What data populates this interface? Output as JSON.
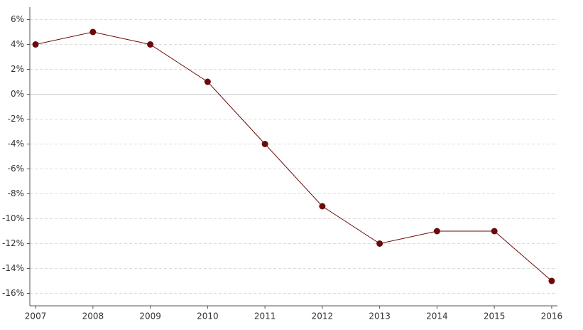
{
  "chart_data": {
    "type": "line",
    "x": [
      2007,
      2008,
      2009,
      2010,
      2011,
      2012,
      2013,
      2014,
      2015,
      2016
    ],
    "series": [
      {
        "color": "#6b0a0a",
        "values": [
          4,
          5,
          4,
          1,
          -4,
          -9,
          -12,
          -11,
          -11,
          -15
        ]
      }
    ],
    "xlim": [
      2006.9,
      2016.1
    ],
    "xticks": [
      2007,
      2008,
      2009,
      2010,
      2011,
      2012,
      2013,
      2014,
      2015,
      2016
    ],
    "ylim": [
      -17,
      7
    ],
    "yticks": [
      {
        "value": -16,
        "label": "-16%"
      },
      {
        "value": -14,
        "label": "-14%"
      },
      {
        "value": -12,
        "label": "-12%"
      },
      {
        "value": -10,
        "label": "-10%"
      },
      {
        "value": -8,
        "label": "-8%"
      },
      {
        "value": -6,
        "label": "-6%"
      },
      {
        "value": -4,
        "label": "-4%"
      },
      {
        "value": -2,
        "label": "-2%"
      },
      {
        "value": 0,
        "label": "0%"
      },
      {
        "value": 2,
        "label": "2%"
      },
      {
        "value": 4,
        "label": "4%"
      },
      {
        "value": 6,
        "label": "6%"
      }
    ],
    "grid": true
  }
}
